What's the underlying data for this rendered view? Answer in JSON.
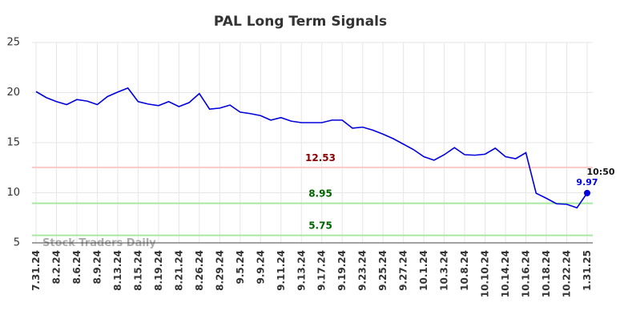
{
  "chart_data": {
    "type": "line",
    "title": "PAL Long Term Signals",
    "categories": [
      "7.31.24",
      null,
      "8.2.24",
      null,
      "8.6.24",
      null,
      "8.9.24",
      null,
      "8.13.24",
      null,
      "8.15.24",
      null,
      "8.19.24",
      null,
      "8.21.24",
      null,
      "8.26.24",
      null,
      "8.29.24",
      null,
      "9.5.24",
      null,
      "9.9.24",
      null,
      "9.11.24",
      null,
      "9.13.24",
      null,
      "9.17.24",
      null,
      "9.19.24",
      null,
      "9.23.24",
      null,
      "9.25.24",
      null,
      "9.27.24",
      null,
      "10.1.24",
      null,
      "10.3.24",
      null,
      "10.8.24",
      null,
      "10.10.24",
      null,
      "10.14.24",
      null,
      "10.16.24",
      null,
      "10.18.24",
      null,
      "10.22.24",
      null,
      "1.31.25"
    ],
    "series": [
      {
        "name": "PAL",
        "color": "#0000dd",
        "values": [
          20.1,
          19.5,
          19.1,
          18.8,
          19.3,
          19.15,
          18.8,
          19.6,
          20.05,
          20.45,
          19.1,
          18.85,
          18.7,
          19.1,
          18.6,
          19.0,
          19.9,
          18.35,
          18.45,
          18.75,
          18.05,
          17.9,
          17.7,
          17.25,
          17.5,
          17.15,
          17.0,
          17.0,
          17.0,
          17.25,
          17.25,
          16.45,
          16.55,
          16.25,
          15.85,
          15.4,
          14.85,
          14.3,
          13.6,
          13.25,
          13.8,
          14.5,
          13.8,
          13.75,
          13.85,
          14.45,
          13.6,
          13.4,
          14.0,
          9.95,
          9.45,
          8.9,
          8.85,
          8.5,
          9.97
        ]
      }
    ],
    "hlines": [
      {
        "value": 12.53,
        "color": "#ffc8c8",
        "label_color": "#8b0000"
      },
      {
        "value": 8.95,
        "color": "#a8e8a0",
        "label_color": "#006400"
      },
      {
        "value": 5.75,
        "color": "#a8e8a0",
        "label_color": "#006400"
      }
    ],
    "last_time": "10:50",
    "watermark": "Stock Traders Daily",
    "ylim": [
      5,
      25
    ],
    "yticks": [
      5,
      10,
      15,
      20,
      25
    ],
    "grid": true
  }
}
